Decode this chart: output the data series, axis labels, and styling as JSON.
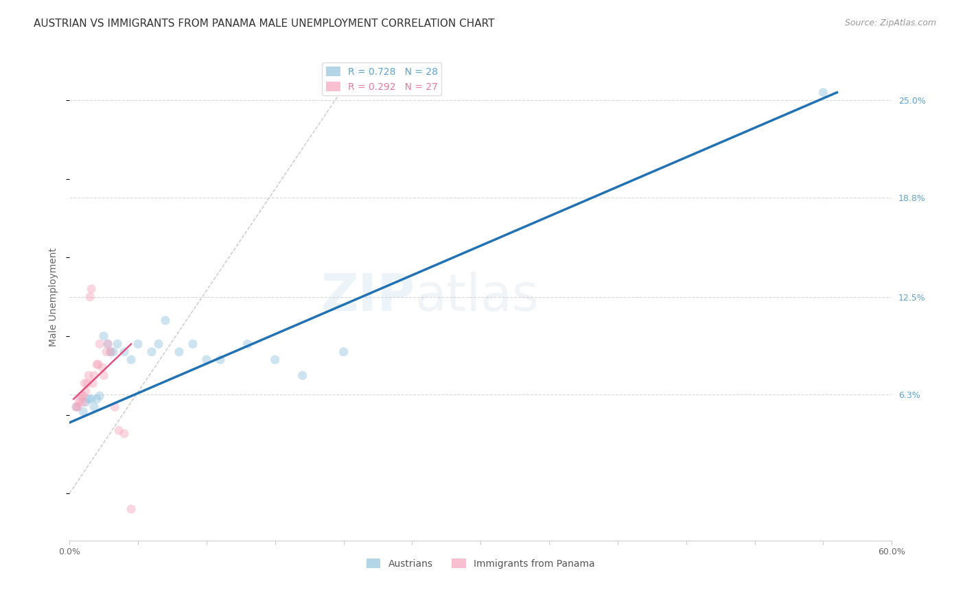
{
  "title": "AUSTRIAN VS IMMIGRANTS FROM PANAMA MALE UNEMPLOYMENT CORRELATION CHART",
  "source": "Source: ZipAtlas.com",
  "ylabel": "Male Unemployment",
  "xlim": [
    0.0,
    0.6
  ],
  "ylim": [
    -0.03,
    0.28
  ],
  "xticks": [
    0.0,
    0.05,
    0.1,
    0.15,
    0.2,
    0.25,
    0.3,
    0.35,
    0.4,
    0.45,
    0.5,
    0.55,
    0.6
  ],
  "xticklabels": [
    "0.0%",
    "",
    "",
    "",
    "",
    "",
    "",
    "",
    "",
    "",
    "",
    "",
    "60.0%"
  ],
  "right_yticks": [
    0.063,
    0.125,
    0.188,
    0.25
  ],
  "right_yticklabels": [
    "6.3%",
    "12.5%",
    "18.8%",
    "25.0%"
  ],
  "legend_entries": [
    {
      "label": "R = 0.728   N = 28",
      "color": "#5ba3d0"
    },
    {
      "label": "R = 0.292   N = 27",
      "color": "#e87a9a"
    }
  ],
  "legend_labels_bottom": [
    "Austrians",
    "Immigrants from Panama"
  ],
  "austrians_x": [
    0.005,
    0.01,
    0.012,
    0.014,
    0.016,
    0.018,
    0.02,
    0.022,
    0.025,
    0.028,
    0.03,
    0.032,
    0.035,
    0.04,
    0.045,
    0.05,
    0.06,
    0.065,
    0.07,
    0.08,
    0.09,
    0.1,
    0.11,
    0.13,
    0.15,
    0.17,
    0.2,
    0.55
  ],
  "austrians_y": [
    0.055,
    0.052,
    0.058,
    0.06,
    0.06,
    0.055,
    0.06,
    0.062,
    0.1,
    0.095,
    0.09,
    0.09,
    0.095,
    0.09,
    0.085,
    0.095,
    0.09,
    0.095,
    0.11,
    0.09,
    0.095,
    0.085,
    0.085,
    0.095,
    0.085,
    0.075,
    0.09,
    0.255
  ],
  "panama_x": [
    0.005,
    0.006,
    0.007,
    0.008,
    0.009,
    0.01,
    0.01,
    0.011,
    0.012,
    0.013,
    0.014,
    0.015,
    0.016,
    0.017,
    0.018,
    0.02,
    0.021,
    0.022,
    0.024,
    0.025,
    0.027,
    0.028,
    0.03,
    0.033,
    0.036,
    0.04,
    0.045
  ],
  "panama_y": [
    0.055,
    0.055,
    0.058,
    0.06,
    0.062,
    0.058,
    0.062,
    0.07,
    0.065,
    0.07,
    0.075,
    0.125,
    0.13,
    0.07,
    0.075,
    0.082,
    0.082,
    0.095,
    0.08,
    0.075,
    0.09,
    0.095,
    0.09,
    0.055,
    0.04,
    0.038,
    -0.01
  ],
  "blue_line_x": [
    0.0,
    0.56
  ],
  "blue_line_y": [
    0.045,
    0.255
  ],
  "pink_line_x": [
    0.003,
    0.045
  ],
  "pink_line_y": [
    0.06,
    0.095
  ],
  "diag_line_x": [
    0.0,
    0.2
  ],
  "diag_line_y": [
    0.0,
    0.258
  ],
  "blue_line_color": "#2171b5",
  "pink_line_color": "#e05080",
  "diag_line_color": "#c8c8c8",
  "scatter_blue": "#92c5de",
  "scatter_pink": "#f4a5bc",
  "bg_color": "#ffffff",
  "grid_color": "#d8d8d8",
  "title_color": "#333333",
  "axis_label_color": "#666666",
  "right_tick_color": "#5ba3d0",
  "source_color": "#999999",
  "title_fontsize": 11,
  "source_fontsize": 9,
  "axis_label_fontsize": 10,
  "tick_fontsize": 9,
  "legend_fontsize": 10,
  "marker_size": 90,
  "marker_alpha": 0.45,
  "watermark_text": "ZIPatlas",
  "watermark_alpha": 0.1
}
